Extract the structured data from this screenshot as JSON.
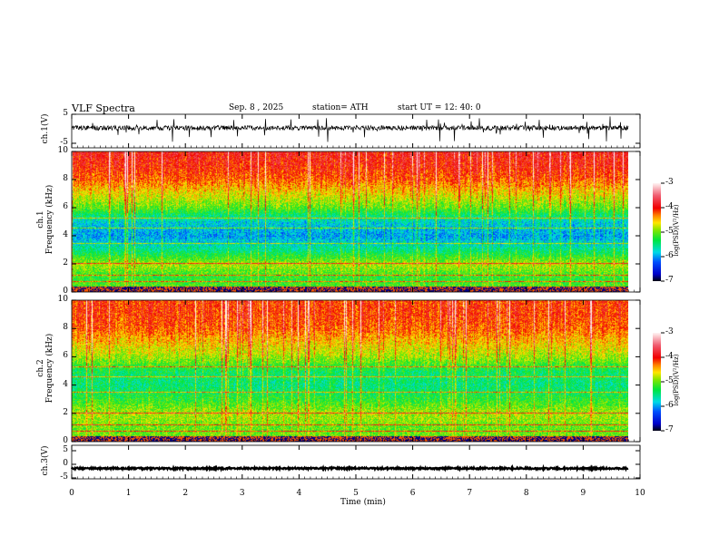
{
  "header": {
    "title": "VLF  Spectra",
    "date": "Sep. 8  , 2025",
    "station": "station= ATH",
    "start": "start  UT  =    12: 40: 0"
  },
  "chart_data": {
    "type": "heatmap",
    "title": "VLF Spectra",
    "xlabel": "Time  (min)",
    "xlim": [
      0,
      10
    ],
    "data_end_min": 9.8,
    "x_ticks": [
      "0",
      "1",
      "2",
      "3",
      "4",
      "5",
      "6",
      "7",
      "8",
      "9",
      "10"
    ],
    "panels": [
      {
        "name": "ch1-waveform",
        "type": "line",
        "ylabel": "ch.1(V)",
        "ylim": [
          -5,
          5
        ],
        "y_ticks": [
          "5",
          "-5"
        ],
        "baseline": 0.3,
        "color": "#000000"
      },
      {
        "name": "ch1-spectrogram",
        "type": "heatmap",
        "ylabel": [
          "ch.1",
          "Frequency  (kHz)"
        ],
        "ylim": [
          0,
          10
        ],
        "y_ticks": [
          "0",
          "2",
          "4",
          "6",
          "8",
          "10"
        ],
        "colorbar": {
          "label": "log(PSD)(V²/Hz)",
          "range": [
            -7,
            -3
          ],
          "ticks": [
            "-3",
            "-4",
            "-5",
            "-6",
            "-7"
          ]
        },
        "profile_kHz_vs_logPSD": [
          [
            0,
            -5
          ],
          [
            1,
            -5.3
          ],
          [
            2,
            -4.9
          ],
          [
            3,
            -5.6
          ],
          [
            4,
            -6.1
          ],
          [
            5,
            -5.9
          ],
          [
            6,
            -5.2
          ],
          [
            7,
            -4.8
          ],
          [
            8,
            -4.4
          ],
          [
            9,
            -4.2
          ],
          [
            10,
            -4.1
          ]
        ]
      },
      {
        "name": "ch2-spectrogram",
        "type": "heatmap",
        "ylabel": [
          "ch.2",
          "Frequency  (kHz)"
        ],
        "ylim": [
          0,
          10
        ],
        "y_ticks": [
          "0",
          "2",
          "4",
          "6",
          "8",
          "10"
        ],
        "colorbar": {
          "label": "log(PSD)(V²/Hz)",
          "range": [
            -7,
            -3
          ],
          "ticks": [
            "-3",
            "-4",
            "-5",
            "-6",
            "-7"
          ]
        },
        "profile_kHz_vs_logPSD": [
          [
            0,
            -5
          ],
          [
            1,
            -5.1
          ],
          [
            2,
            -4.9
          ],
          [
            3,
            -5.3
          ],
          [
            4,
            -5.6
          ],
          [
            5,
            -5.5
          ],
          [
            6,
            -5.0
          ],
          [
            7,
            -4.7
          ],
          [
            8,
            -4.4
          ],
          [
            9,
            -4.3
          ],
          [
            10,
            -4.3
          ]
        ]
      },
      {
        "name": "ch3-waveform",
        "type": "line",
        "ylabel": "ch.3(V)",
        "ylim": [
          -5,
          5
        ],
        "y_ticks": [
          "5",
          "0",
          "-5"
        ],
        "baseline": -1.5,
        "color": "#000000"
      }
    ]
  }
}
